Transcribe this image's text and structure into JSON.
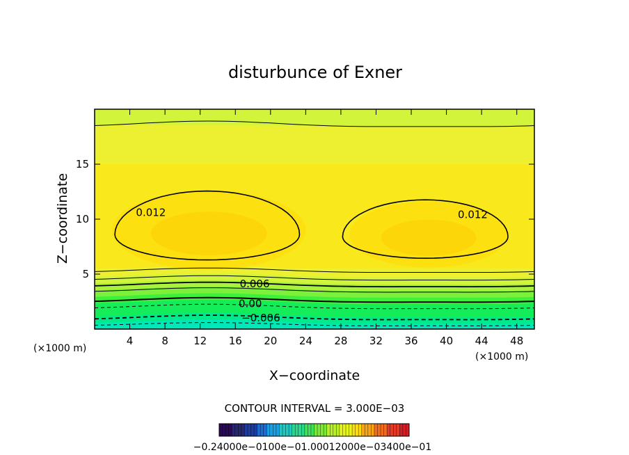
{
  "chart_data": {
    "type": "heatmap",
    "title": "disturbunce of Exner",
    "xlabel": "X−coordinate",
    "ylabel": "Z−coordinate",
    "x_unit": "(×1000 m)",
    "y_unit": "(×1000 m)",
    "xlim": [
      0,
      50
    ],
    "ylim": [
      0,
      20
    ],
    "x_ticks": [
      4,
      8,
      12,
      16,
      20,
      24,
      28,
      32,
      36,
      40,
      44,
      48
    ],
    "y_ticks": [
      5,
      10,
      15
    ],
    "contour_interval_text": "CONTOUR INTERVAL = 3.000E−03",
    "contour_labels": [
      {
        "text": "0.012",
        "x": 6.4,
        "z": 10.6
      },
      {
        "text": "0.012",
        "x": 43.0,
        "z": 10.4
      },
      {
        "text": "0.006",
        "x": 18.2,
        "z": 4.1
      },
      {
        "text": "0.00",
        "x": 17.7,
        "z": 2.3
      },
      {
        "text": "−0.006",
        "x": 18.9,
        "z": 1.0
      }
    ],
    "colorbar_labels_text": "−0.24000e−0100e−01.00012000e−03400e−01",
    "colorbar_colors": [
      "#2a0a55",
      "#26286e",
      "#1c3d9e",
      "#1b6bd0",
      "#1a9fe0",
      "#22c8c0",
      "#2bd890",
      "#3fe05a",
      "#7ce83a",
      "#b7ef2a",
      "#e6f41a",
      "#fcdd10",
      "#f7a516",
      "#f06d1e",
      "#e53a25",
      "#cf2028"
    ],
    "field_colors": [
      "#00e8b8",
      "#00ea8c",
      "#14ec5a",
      "#3ff03a",
      "#7cf03a",
      "#aaf23c",
      "#d2f43a",
      "#ecf030",
      "#f8e81c",
      "#fde010",
      "#fcd608"
    ]
  }
}
